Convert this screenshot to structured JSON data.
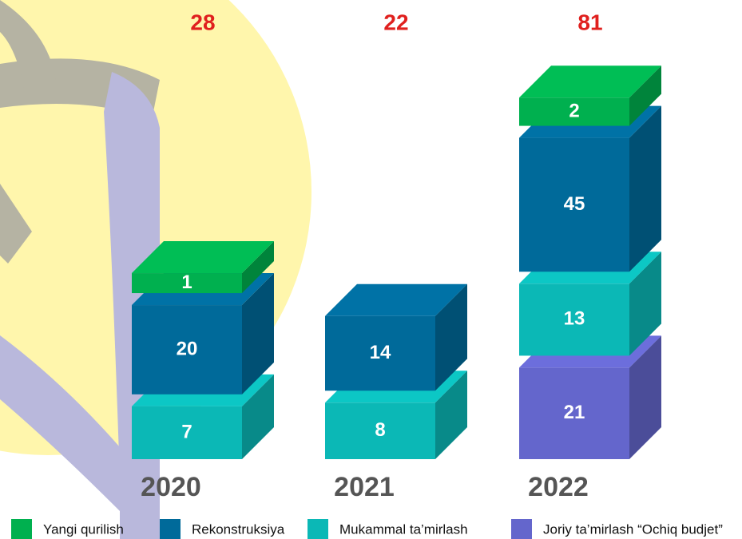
{
  "chart_data": {
    "type": "stacked-bar-3d",
    "categories": [
      "2020",
      "2021",
      "2022"
    ],
    "totals": [
      28,
      22,
      81
    ],
    "series": [
      {
        "name": "Yangi qurilish",
        "color": "#00b04f",
        "values": [
          1,
          null,
          2
        ]
      },
      {
        "name": "Rekonstruksiya",
        "color": "#006a9a",
        "values": [
          20,
          14,
          45
        ]
      },
      {
        "name": "Mukammal ta’mirlash",
        "color": "#0bb8b6",
        "values": [
          7,
          8,
          13
        ]
      },
      {
        "name": "Joriy ta’mirlash “Ochiq budjet”",
        "color": "#6466cc",
        "values": [
          null,
          null,
          21
        ]
      }
    ]
  }
}
